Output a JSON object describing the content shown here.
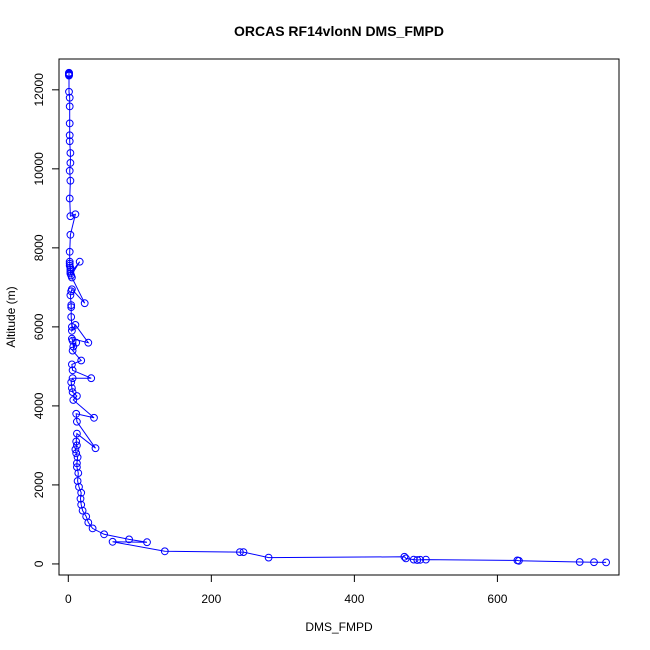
{
  "chart_data": {
    "type": "line",
    "title": "ORCAS RF14vlonN DMS_FMPD",
    "xlabel": "DMS_FMPD",
    "ylabel": "Altitude (m)",
    "xlim": [
      -13,
      770
    ],
    "ylim": [
      -280,
      12780
    ],
    "x_ticks": [
      0,
      200,
      400,
      600
    ],
    "y_ticks": [
      0,
      2000,
      4000,
      6000,
      8000,
      10000,
      12000
    ],
    "marker": "open-circle",
    "grid": false,
    "legend": "none",
    "colors": {
      "series": "#0000ff",
      "axes": "#000000"
    },
    "series": [
      {
        "x": [
          1,
          1,
          1,
          1,
          1,
          1,
          1,
          1,
          1,
          2,
          2,
          2,
          2,
          2,
          3,
          3,
          2,
          3,
          2,
          3,
          10,
          3,
          2,
          2,
          2,
          2,
          3,
          3,
          3,
          3,
          16,
          4,
          5,
          23,
          5,
          4,
          3,
          4,
          4,
          4,
          5,
          5,
          10,
          28,
          5,
          6,
          7,
          11,
          6,
          18,
          5,
          6,
          32,
          6,
          4,
          5,
          6,
          12,
          7,
          36,
          11,
          12,
          38,
          12,
          11,
          12,
          10,
          11,
          13,
          12,
          12,
          14,
          13,
          15,
          18,
          17,
          18,
          20,
          25,
          28,
          34,
          50,
          85,
          110,
          62,
          135,
          240,
          245,
          280,
          470,
          472,
          483,
          488,
          492,
          500,
          628,
          630,
          715,
          735,
          752
        ],
        "y": [
          12430,
          12420,
          12410,
          12400,
          12390,
          12380,
          12370,
          12360,
          11950,
          11800,
          11580,
          11150,
          10850,
          10700,
          10400,
          10150,
          9950,
          9700,
          9250,
          8800,
          8850,
          8330,
          7900,
          7650,
          7600,
          7550,
          7500,
          7450,
          7400,
          7350,
          7650,
          7300,
          7250,
          6600,
          6950,
          6900,
          6800,
          6550,
          6500,
          6250,
          6000,
          5900,
          6050,
          5600,
          5700,
          5650,
          5500,
          5600,
          5400,
          5150,
          5050,
          4900,
          4700,
          4700,
          4600,
          4450,
          4350,
          4250,
          4150,
          3700,
          3800,
          3600,
          2930,
          3300,
          3100,
          3000,
          2900,
          2800,
          2700,
          2550,
          2450,
          2300,
          2100,
          1950,
          1800,
          1650,
          1500,
          1350,
          1200,
          1050,
          900,
          750,
          620,
          550,
          560,
          320,
          300,
          300,
          160,
          180,
          140,
          110,
          100,
          105,
          110,
          90,
          80,
          50,
          45,
          40
        ]
      }
    ]
  }
}
